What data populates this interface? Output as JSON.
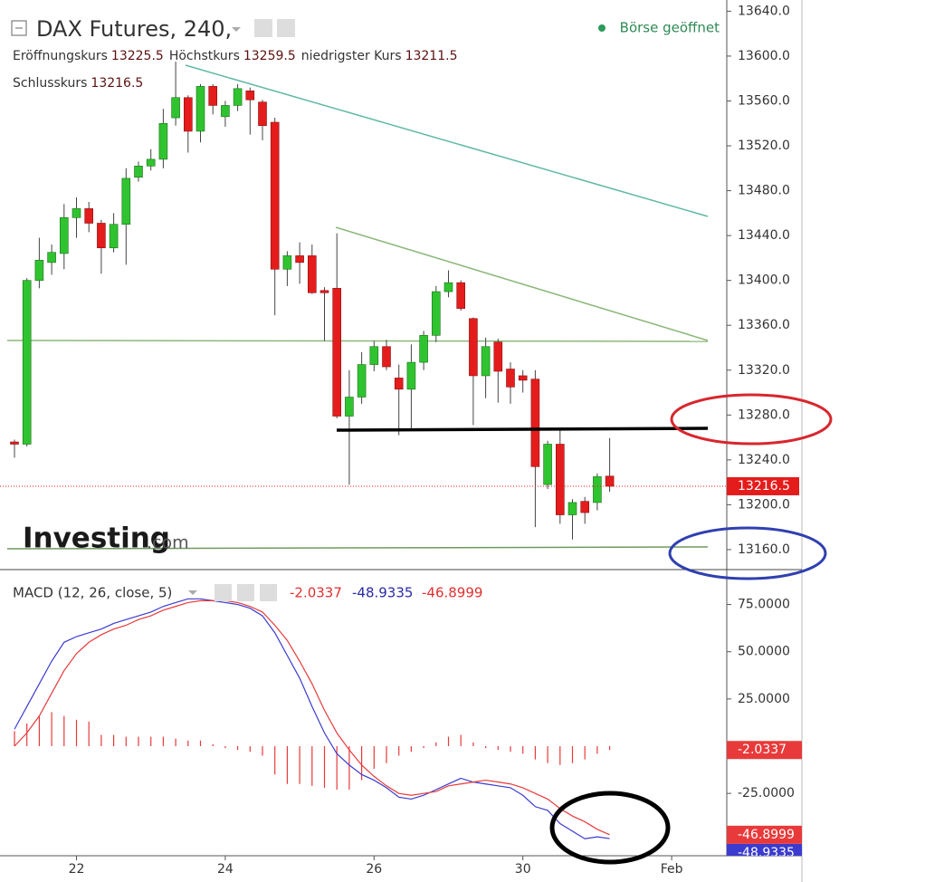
{
  "chart_data": [
    {
      "type": "candlestick",
      "title": "DAX Futures, 240,",
      "status": "Börse geöffnet",
      "ohlc_labels": [
        "Eröffnungskurs",
        "Höchstkurs",
        "niedrigster Kurs",
        "Schlusskurs"
      ],
      "logo": {
        "text": "Investing",
        "suffix": ".com"
      },
      "categories": [
        null,
        null,
        null,
        null,
        null,
        "22",
        null,
        null,
        null,
        null,
        null,
        null,
        null,
        null,
        null,
        null,
        null,
        "24",
        null,
        null,
        null,
        null,
        null,
        null,
        null,
        null,
        null,
        null,
        null,
        "26",
        null,
        null,
        null,
        null,
        null,
        null,
        null,
        null,
        null,
        null,
        null,
        "30",
        null,
        null,
        null,
        null,
        null,
        null,
        null,
        null,
        null,
        null,
        null,
        "Feb"
      ],
      "open": [
        13256,
        13254,
        13400,
        13416,
        13424,
        13456,
        13464,
        13451,
        13429,
        13450,
        13492,
        13502,
        13508,
        13545,
        13563,
        13533,
        13573,
        13546,
        13556,
        13569,
        13559,
        13541,
        13410,
        13422,
        13422,
        13391,
        13393,
        13279,
        13296,
        13325,
        13341,
        13313,
        13303,
        13327,
        13351,
        13390,
        13398,
        13366,
        13315,
        13345,
        13321,
        13315,
        13312,
        13218,
        13254,
        13191,
        13203,
        13202,
        13225.5,
        null,
        null,
        null,
        null,
        null
      ],
      "high": [
        13258,
        13402,
        13438,
        13432,
        13468,
        13474,
        13470,
        13454,
        13460,
        13500,
        13506,
        13517,
        13553,
        13595,
        13565,
        13575,
        13575,
        13560,
        13575,
        13572,
        13561,
        13545,
        13426,
        13434,
        13432,
        13394,
        13442,
        13320,
        13336,
        13346,
        13347,
        13325,
        13343,
        13355,
        13395,
        13409,
        13400,
        13367,
        13349,
        13348,
        13327,
        13320,
        13320,
        13257,
        13268,
        13205,
        13207,
        13228,
        13259.5,
        null,
        null,
        null,
        null,
        null
      ],
      "low": [
        13242,
        13252,
        13393,
        13405,
        13410,
        13438,
        13443,
        13406,
        13425,
        13414,
        13488,
        13498,
        13500,
        13538,
        13514,
        13523,
        13548,
        13537,
        13551,
        13530,
        13525,
        13369,
        13395,
        13397,
        13388,
        13346,
        13277,
        13218,
        13290,
        13319,
        13320,
        13262,
        13266,
        13320,
        13345,
        13385,
        13373,
        13271,
        13295,
        13291,
        13290,
        13300,
        13180,
        13214,
        13183,
        13169,
        13183,
        13195,
        13211.5,
        null,
        null,
        null,
        null,
        null
      ],
      "close": [
        13254,
        13400,
        13418,
        13425,
        13456,
        13464,
        13451,
        13429,
        13450,
        13491,
        13502,
        13508,
        13540,
        13563,
        13533,
        13573,
        13556,
        13556,
        13571,
        13561,
        13538,
        13410,
        13422,
        13416,
        13389,
        13389,
        13279,
        13296,
        13325,
        13341,
        13323,
        13303,
        13327,
        13351,
        13390,
        13398,
        13375,
        13315,
        13341,
        13319,
        13305,
        13311,
        13234,
        13254,
        13191,
        13202,
        13193,
        13225,
        13216.5,
        null,
        null,
        null,
        null,
        null
      ],
      "up_color": "#2fc42f",
      "down_color": "#e51c1c",
      "ylim": [
        13143,
        13650
      ],
      "yticks": [
        {
          "value": 13640,
          "label": "13640.0"
        },
        {
          "value": 13600,
          "label": "13600.0"
        },
        {
          "value": 13560,
          "label": "13560.0"
        },
        {
          "value": 13520,
          "label": "13520.0"
        },
        {
          "value": 13480,
          "label": "13480.0"
        },
        {
          "value": 13440,
          "label": "13440.0"
        },
        {
          "value": 13400,
          "label": "13400.0"
        },
        {
          "value": 13360,
          "label": "13360.0"
        },
        {
          "value": 13320,
          "label": "13320.0"
        },
        {
          "value": 13280,
          "label": "13280.0"
        },
        {
          "value": 13240,
          "label": "13240.0"
        },
        {
          "value": 13200,
          "label": "13200.0"
        },
        {
          "value": 13160,
          "label": "13160.0"
        }
      ],
      "grid": false
    },
    {
      "type": "macd",
      "title": "MACD (12, 26, close, 5)",
      "series": [
        {
          "color": "#3b3bd0",
          "values": [
            9,
            21,
            33,
            45,
            55,
            58,
            60,
            62,
            65,
            67,
            69,
            71,
            74,
            76,
            78,
            78,
            77,
            76,
            75,
            73,
            69,
            60,
            48,
            36,
            21,
            7,
            -4,
            -10,
            -15,
            -18,
            -22,
            -27,
            -28,
            -26,
            -23,
            -20,
            -17,
            -19,
            -20,
            -21,
            -22,
            -26,
            -32,
            -34,
            -41,
            -45,
            -49,
            -48,
            -48.9335,
            null,
            null,
            null,
            null,
            null
          ]
        },
        {
          "color": "#e83a3a",
          "values": [
            0,
            7,
            16,
            28,
            40,
            49,
            55,
            59,
            62,
            64,
            67,
            69,
            72,
            74,
            76,
            77,
            77,
            77,
            76,
            74,
            71,
            64,
            56,
            45,
            33,
            19,
            7,
            -2,
            -10,
            -16,
            -21,
            -25,
            -26,
            -25,
            -24,
            -21,
            -20,
            -19,
            -18,
            -19,
            -20,
            -22,
            -25,
            -28,
            -33,
            -37,
            -40,
            -44,
            -46.8999,
            null,
            null,
            null,
            null,
            null
          ]
        }
      ],
      "histogram": {
        "color": "#e83a3a",
        "values": [
          8,
          12,
          16,
          18,
          16,
          14,
          13,
          6,
          6,
          5,
          5,
          5,
          5,
          4,
          3,
          3,
          1,
          -1,
          -2,
          -3,
          -5,
          -15,
          -20,
          -20,
          -21,
          -22,
          -23,
          -23,
          -18,
          -12,
          -9,
          -5,
          -3,
          -1,
          2,
          5,
          6,
          2,
          -1,
          -2,
          -3,
          -4,
          -7,
          -9,
          -10,
          -9,
          -7,
          -4,
          -2.0337,
          null,
          null,
          null,
          null,
          null
        ]
      },
      "ylim": [
        -58,
        93
      ],
      "yticks": [
        {
          "value": 75,
          "label": "75.0000"
        },
        {
          "value": 50,
          "label": "50.0000"
        },
        {
          "value": 25,
          "label": "25.0000"
        },
        {
          "value": -25,
          "label": "-25.0000"
        }
      ],
      "grid": false
    }
  ]
}
